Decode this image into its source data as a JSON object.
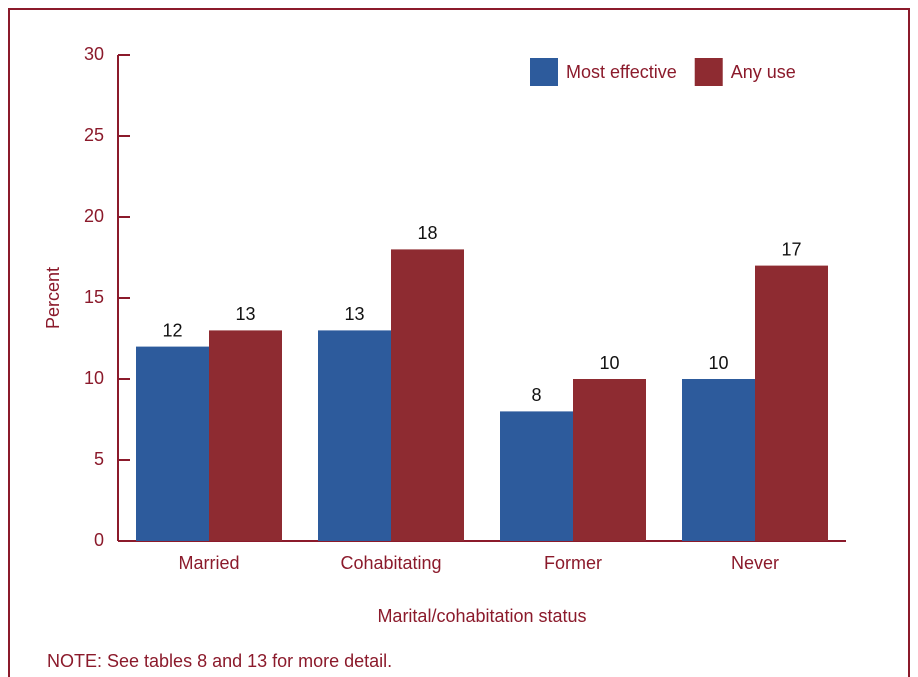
{
  "chart_data": {
    "type": "bar",
    "categories": [
      "Married",
      "Cohabitating",
      "Former",
      "Never"
    ],
    "series": [
      {
        "name": "Most effective",
        "color": "#2d5b9c",
        "values": [
          12,
          13,
          8,
          10
        ]
      },
      {
        "name": "Any use",
        "color": "#8e2b31",
        "values": [
          13,
          18,
          10,
          17
        ]
      }
    ],
    "ylim": [
      0,
      30
    ],
    "yticks": [
      0,
      5,
      10,
      15,
      20,
      25,
      30
    ],
    "y_label": "Percent",
    "x_label": "Marital/cohabitation status",
    "note": "NOTE: See tables 8 and 13 for more detail.",
    "legend": "top-right"
  }
}
